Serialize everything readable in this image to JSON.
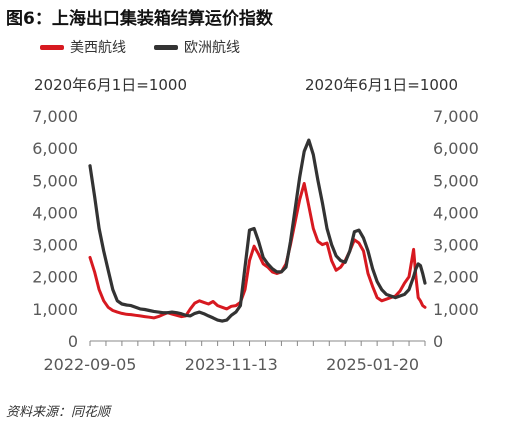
{
  "page": {
    "title": "图6：上海出口集装箱结算运价指数",
    "unit_left": "2020年6月1日=1000",
    "unit_right": "2020年6月1日=1000",
    "source": "资料来源：同花顺"
  },
  "colors": {
    "us_west": "#d71920",
    "europe": "#333333",
    "axis": "#888888"
  },
  "chart_data": {
    "type": "line",
    "title": "图6：上海出口集装箱结算运价指数",
    "x_tick_labels": [
      "2022-09-05",
      "2023-11-13",
      "2025-01-20"
    ],
    "x_range": [
      "2022-09-05",
      "2025-06-30"
    ],
    "y_ticks": [
      "0",
      "1,000",
      "2,000",
      "3,000",
      "4,000",
      "5,000",
      "6,000",
      "7,000"
    ],
    "ylim": [
      0,
      7000
    ],
    "ylabel": "2020年6月1日=1000",
    "y2label": "2020年6月1日=1000",
    "grid": false,
    "legend_position": "top-left",
    "series": [
      {
        "name": "美西航线",
        "color": "#d71920",
        "points": [
          [
            "2022-09-05",
            2600
          ],
          [
            "2022-09-19",
            2150
          ],
          [
            "2022-10-03",
            1600
          ],
          [
            "2022-10-17",
            1250
          ],
          [
            "2022-10-31",
            1050
          ],
          [
            "2022-11-14",
            950
          ],
          [
            "2022-11-28",
            900
          ],
          [
            "2022-12-12",
            860
          ],
          [
            "2022-12-26",
            830
          ],
          [
            "2023-01-09",
            820
          ],
          [
            "2023-01-23",
            800
          ],
          [
            "2023-02-06",
            780
          ],
          [
            "2023-02-20",
            760
          ],
          [
            "2023-03-06",
            740
          ],
          [
            "2023-03-20",
            720
          ],
          [
            "2023-04-03",
            760
          ],
          [
            "2023-04-17",
            820
          ],
          [
            "2023-05-01",
            880
          ],
          [
            "2023-05-15",
            840
          ],
          [
            "2023-05-29",
            800
          ],
          [
            "2023-06-12",
            760
          ],
          [
            "2023-06-26",
            780
          ],
          [
            "2023-07-10",
            1000
          ],
          [
            "2023-07-24",
            1180
          ],
          [
            "2023-08-07",
            1250
          ],
          [
            "2023-08-21",
            1200
          ],
          [
            "2023-09-04",
            1150
          ],
          [
            "2023-09-18",
            1230
          ],
          [
            "2023-10-02",
            1100
          ],
          [
            "2023-10-16",
            1050
          ],
          [
            "2023-10-30",
            1000
          ],
          [
            "2023-11-13",
            1080
          ],
          [
            "2023-11-27",
            1100
          ],
          [
            "2023-12-11",
            1200
          ],
          [
            "2023-12-25",
            1600
          ],
          [
            "2024-01-08",
            2500
          ],
          [
            "2024-01-22",
            2950
          ],
          [
            "2024-02-05",
            2700
          ],
          [
            "2024-02-19",
            2400
          ],
          [
            "2024-03-04",
            2300
          ],
          [
            "2024-03-18",
            2150
          ],
          [
            "2024-04-01",
            2100
          ],
          [
            "2024-04-15",
            2150
          ],
          [
            "2024-04-29",
            2400
          ],
          [
            "2024-05-13",
            3000
          ],
          [
            "2024-05-27",
            3700
          ],
          [
            "2024-06-10",
            4400
          ],
          [
            "2024-06-24",
            4900
          ],
          [
            "2024-07-08",
            4200
          ],
          [
            "2024-07-22",
            3500
          ],
          [
            "2024-08-05",
            3100
          ],
          [
            "2024-08-19",
            3000
          ],
          [
            "2024-09-02",
            3050
          ],
          [
            "2024-09-16",
            2500
          ],
          [
            "2024-09-30",
            2200
          ],
          [
            "2024-10-14",
            2300
          ],
          [
            "2024-10-28",
            2500
          ],
          [
            "2024-11-11",
            2800
          ],
          [
            "2024-11-25",
            3150
          ],
          [
            "2024-12-09",
            3050
          ],
          [
            "2024-12-23",
            2800
          ],
          [
            "2025-01-06",
            2100
          ],
          [
            "2025-01-20",
            1700
          ],
          [
            "2025-02-03",
            1350
          ],
          [
            "2025-02-17",
            1250
          ],
          [
            "2025-03-03",
            1300
          ],
          [
            "2025-03-17",
            1350
          ],
          [
            "2025-03-31",
            1400
          ],
          [
            "2025-04-14",
            1550
          ],
          [
            "2025-04-28",
            1800
          ],
          [
            "2025-05-12",
            2000
          ],
          [
            "2025-05-26",
            2850
          ],
          [
            "2025-06-02",
            2000
          ],
          [
            "2025-06-09",
            1350
          ],
          [
            "2025-06-16",
            1250
          ],
          [
            "2025-06-23",
            1100
          ],
          [
            "2025-06-30",
            1050
          ]
        ]
      },
      {
        "name": "欧洲航线",
        "color": "#333333",
        "points": [
          [
            "2022-09-05",
            5450
          ],
          [
            "2022-09-19",
            4500
          ],
          [
            "2022-10-03",
            3500
          ],
          [
            "2022-10-17",
            2800
          ],
          [
            "2022-10-31",
            2200
          ],
          [
            "2022-11-14",
            1600
          ],
          [
            "2022-11-28",
            1250
          ],
          [
            "2022-12-12",
            1150
          ],
          [
            "2022-12-26",
            1120
          ],
          [
            "2023-01-09",
            1100
          ],
          [
            "2023-01-23",
            1050
          ],
          [
            "2023-02-06",
            1000
          ],
          [
            "2023-02-20",
            980
          ],
          [
            "2023-03-06",
            950
          ],
          [
            "2023-03-20",
            920
          ],
          [
            "2023-04-03",
            900
          ],
          [
            "2023-04-17",
            880
          ],
          [
            "2023-05-01",
            880
          ],
          [
            "2023-05-15",
            900
          ],
          [
            "2023-05-29",
            880
          ],
          [
            "2023-06-12",
            850
          ],
          [
            "2023-06-26",
            800
          ],
          [
            "2023-07-10",
            780
          ],
          [
            "2023-07-24",
            860
          ],
          [
            "2023-08-07",
            900
          ],
          [
            "2023-08-21",
            850
          ],
          [
            "2023-09-04",
            780
          ],
          [
            "2023-09-18",
            720
          ],
          [
            "2023-10-02",
            650
          ],
          [
            "2023-10-16",
            620
          ],
          [
            "2023-10-30",
            650
          ],
          [
            "2023-11-13",
            800
          ],
          [
            "2023-11-27",
            900
          ],
          [
            "2023-12-11",
            1100
          ],
          [
            "2023-12-25",
            2300
          ],
          [
            "2024-01-08",
            3450
          ],
          [
            "2024-01-22",
            3500
          ],
          [
            "2024-02-05",
            3100
          ],
          [
            "2024-02-19",
            2600
          ],
          [
            "2024-03-04",
            2400
          ],
          [
            "2024-03-18",
            2250
          ],
          [
            "2024-04-01",
            2150
          ],
          [
            "2024-04-15",
            2150
          ],
          [
            "2024-04-29",
            2300
          ],
          [
            "2024-05-13",
            3100
          ],
          [
            "2024-05-27",
            4100
          ],
          [
            "2024-06-10",
            5100
          ],
          [
            "2024-06-24",
            5900
          ],
          [
            "2024-07-08",
            6250
          ],
          [
            "2024-07-22",
            5800
          ],
          [
            "2024-08-05",
            5000
          ],
          [
            "2024-08-19",
            4300
          ],
          [
            "2024-09-02",
            3500
          ],
          [
            "2024-09-16",
            3000
          ],
          [
            "2024-09-30",
            2650
          ],
          [
            "2024-10-14",
            2500
          ],
          [
            "2024-10-28",
            2450
          ],
          [
            "2024-11-11",
            2800
          ],
          [
            "2024-11-25",
            3400
          ],
          [
            "2024-12-09",
            3450
          ],
          [
            "2024-12-23",
            3200
          ],
          [
            "2025-01-06",
            2800
          ],
          [
            "2025-01-20",
            2250
          ],
          [
            "2025-02-03",
            1850
          ],
          [
            "2025-02-17",
            1600
          ],
          [
            "2025-03-03",
            1450
          ],
          [
            "2025-03-17",
            1400
          ],
          [
            "2025-03-31",
            1350
          ],
          [
            "2025-04-14",
            1400
          ],
          [
            "2025-04-28",
            1450
          ],
          [
            "2025-05-12",
            1600
          ],
          [
            "2025-05-26",
            2000
          ],
          [
            "2025-06-02",
            2250
          ],
          [
            "2025-06-09",
            2400
          ],
          [
            "2025-06-16",
            2350
          ],
          [
            "2025-06-23",
            2100
          ],
          [
            "2025-06-30",
            1800
          ]
        ]
      }
    ]
  }
}
